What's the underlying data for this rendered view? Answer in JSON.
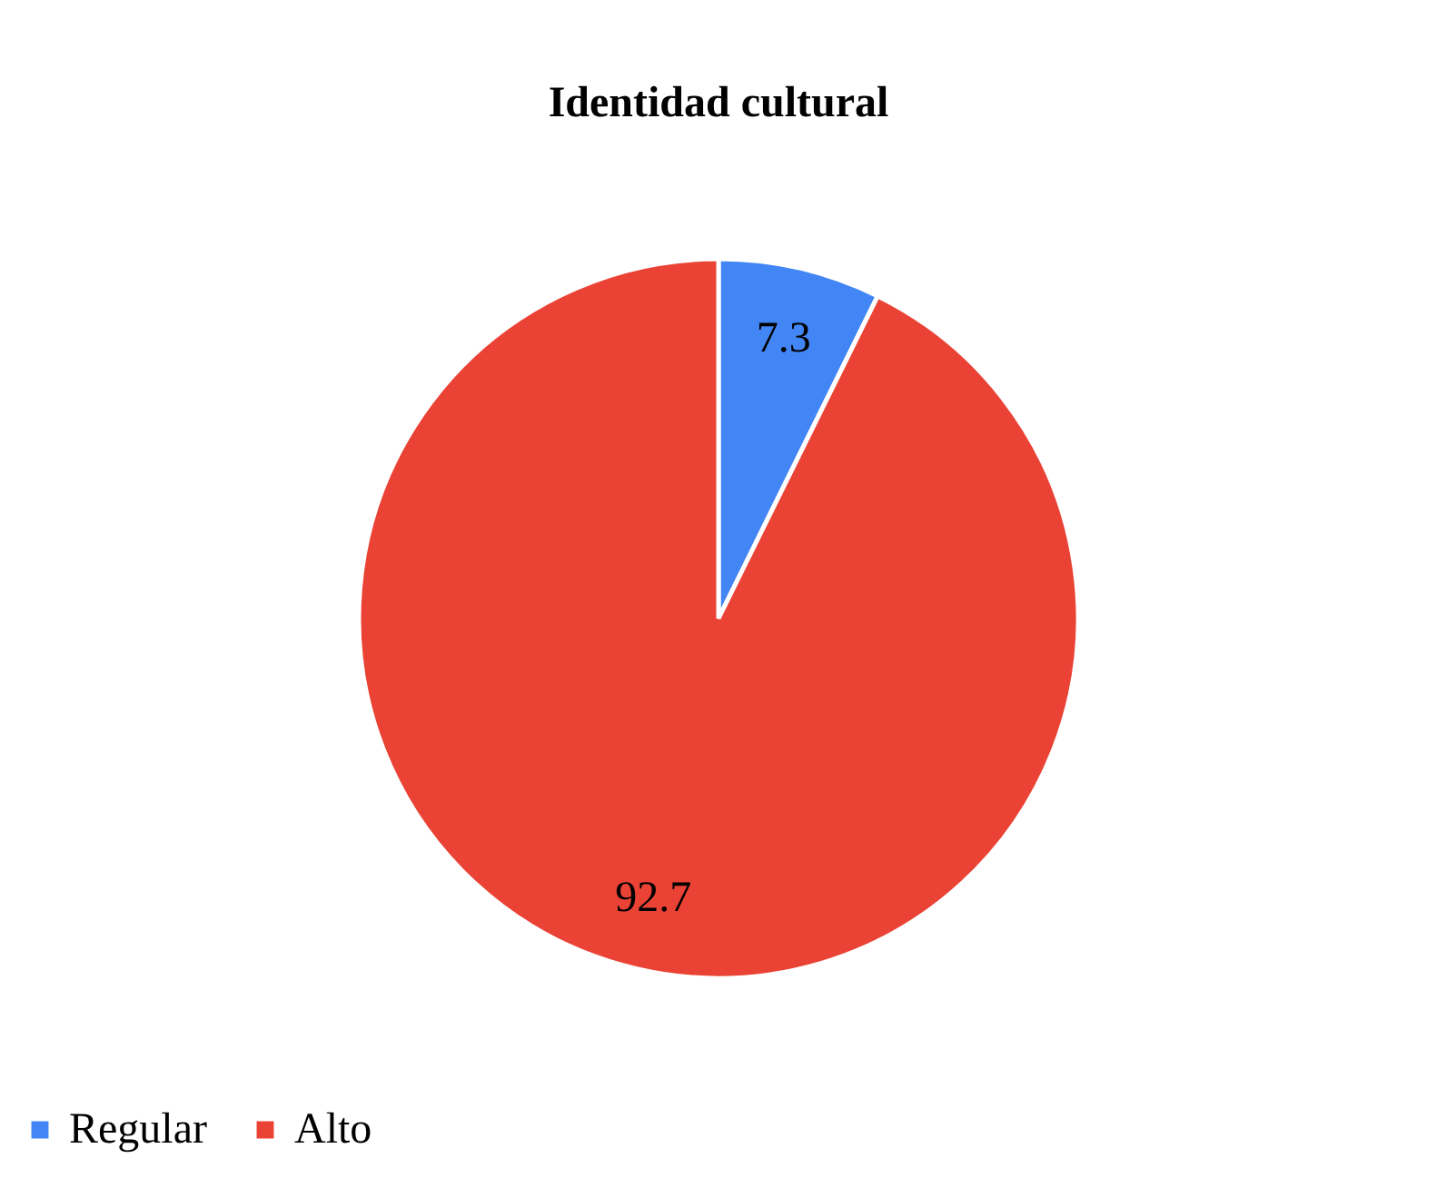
{
  "chart_data": {
    "type": "pie",
    "title": "Identidad cultural",
    "categories": [
      "Regular",
      "Alto"
    ],
    "values": [
      7.3,
      92.7
    ],
    "colors": [
      "#4285f4",
      "#ea4335"
    ],
    "data_labels": true,
    "legend": "bottom"
  }
}
